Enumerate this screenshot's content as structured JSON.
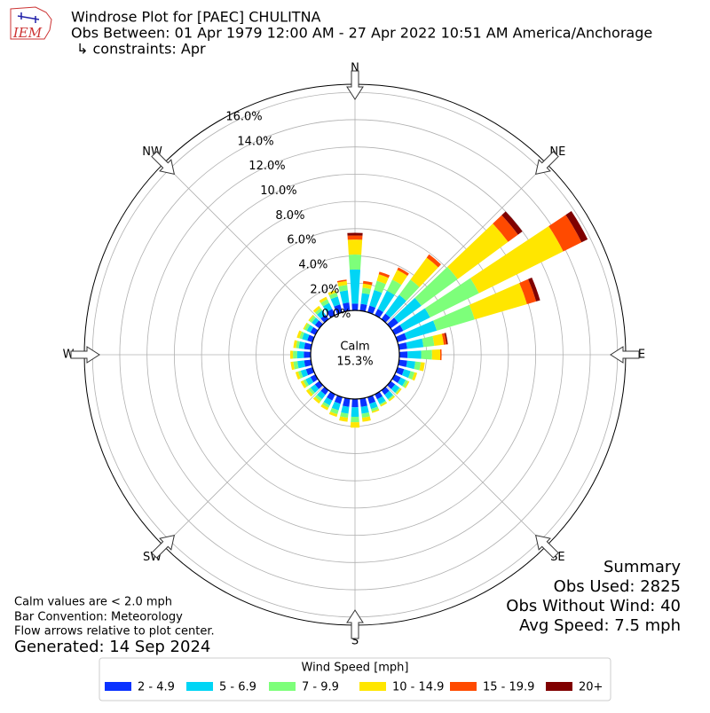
{
  "chart_data": {
    "type": "windrose",
    "title": "Windrose Plot for [PAEC] CHULITNA",
    "subtitle": "Obs Between: 01 Apr 1979 12:00 AM - 27 Apr 2022 10:51 AM America/Anchorage",
    "constraints": "↳ constraints: Apr",
    "logo_text": "IEM",
    "x": [
      0,
      10,
      20,
      30,
      40,
      50,
      60,
      70,
      80,
      90,
      100,
      110,
      120,
      130,
      140,
      150,
      160,
      170,
      180,
      190,
      200,
      210,
      220,
      230,
      240,
      250,
      260,
      270,
      280,
      290,
      300,
      310,
      320,
      330,
      340,
      350
    ],
    "xticks": [
      {
        "value": 0,
        "label": "N"
      },
      {
        "value": 45,
        "label": "NE"
      },
      {
        "value": 90,
        "label": "E"
      },
      {
        "value": 135,
        "label": "SE"
      },
      {
        "value": 180,
        "label": "S"
      },
      {
        "value": 225,
        "label": "SW"
      },
      {
        "value": 270,
        "label": "W"
      },
      {
        "value": 315,
        "label": "NW"
      }
    ],
    "ylim": [
      0,
      16.6
    ],
    "yticks": [
      {
        "value": 0,
        "label": "0.0%"
      },
      {
        "value": 2,
        "label": "2.0%"
      },
      {
        "value": 4,
        "label": "4.0%"
      },
      {
        "value": 6,
        "label": "6.0%"
      },
      {
        "value": 8,
        "label": "8.0%"
      },
      {
        "value": 10,
        "label": "10.0%"
      },
      {
        "value": 12,
        "label": "12.0%"
      },
      {
        "value": 14,
        "label": "14.0%"
      },
      {
        "value": 16,
        "label": "16.0%"
      }
    ],
    "grid": true,
    "calm": {
      "label": "Calm",
      "value": 15.3,
      "value_label": "15.3%"
    },
    "legend_title": "Wind Speed [mph]",
    "series": [
      {
        "name": "2 - 4.9",
        "color": "#0a32ff",
        "values": [
          0.5,
          0.5,
          0.5,
          0.5,
          0.5,
          0.7,
          0.7,
          0.7,
          0.6,
          0.6,
          0.6,
          0.5,
          0.5,
          0.4,
          0.4,
          0.4,
          0.5,
          0.6,
          0.6,
          0.6,
          0.5,
          0.5,
          0.4,
          0.4,
          0.4,
          0.5,
          0.5,
          0.5,
          0.5,
          0.4,
          0.4,
          0.4,
          0.4,
          0.5,
          0.6,
          0.6
        ]
      },
      {
        "name": "5 - 6.9",
        "color": "#00d5f5",
        "values": [
          2.5,
          0.8,
          1.2,
          1.5,
          1.7,
          2.1,
          2.2,
          2.3,
          1.2,
          1.0,
          0.6,
          0.5,
          0.4,
          0.4,
          0.4,
          0.4,
          0.4,
          0.5,
          0.7,
          0.5,
          0.5,
          0.4,
          0.4,
          0.4,
          0.4,
          0.4,
          0.5,
          0.5,
          0.4,
          0.4,
          0.3,
          0.3,
          0.4,
          0.5,
          0.6,
          0.9
        ]
      },
      {
        "name": "7 - 9.9",
        "color": "#7dff7a",
        "values": [
          1.1,
          0.4,
          0.7,
          0.9,
          1.4,
          3.3,
          4.0,
          2.9,
          0.8,
          0.8,
          0.4,
          0.3,
          0.2,
          0.1,
          0.1,
          0.1,
          0.2,
          0.3,
          0.4,
          0.3,
          0.3,
          0.2,
          0.2,
          0.2,
          0.2,
          0.2,
          0.3,
          0.3,
          0.2,
          0.2,
          0.2,
          0.2,
          0.2,
          0.3,
          0.3,
          0.4
        ]
      },
      {
        "name": "10 - 14.9",
        "color": "#ffe600",
        "values": [
          1.1,
          0.3,
          0.5,
          0.8,
          2.0,
          4.6,
          6.9,
          4.0,
          0.7,
          0.6,
          0.3,
          0.2,
          0.1,
          0.1,
          0.1,
          0.1,
          0.1,
          0.3,
          0.4,
          0.3,
          0.2,
          0.2,
          0.2,
          0.2,
          0.2,
          0.2,
          0.2,
          0.2,
          0.2,
          0.2,
          0.1,
          0.1,
          0.2,
          0.2,
          0.2,
          0.3
        ]
      },
      {
        "name": "15 - 19.9",
        "color": "#ff4a00",
        "values": [
          0.3,
          0.2,
          0.2,
          0.2,
          0.3,
          0.9,
          1.5,
          0.7,
          0.2,
          0.1,
          0,
          0,
          0,
          0,
          0,
          0,
          0,
          0,
          0,
          0,
          0,
          0,
          0,
          0,
          0,
          0,
          0,
          0,
          0,
          0,
          0,
          0,
          0,
          0,
          0,
          0.1
        ]
      },
      {
        "name": "20+",
        "color": "#800000",
        "values": [
          0.2,
          0,
          0,
          0,
          0,
          0.4,
          0.5,
          0.3,
          0.1,
          0,
          0,
          0,
          0,
          0,
          0,
          0,
          0,
          0,
          0,
          0,
          0,
          0,
          0,
          0,
          0,
          0,
          0,
          0,
          0,
          0,
          0,
          0,
          0,
          0,
          0,
          0
        ]
      }
    ],
    "notes": [
      "Calm values are < 2.0 mph",
      "Bar Convention: Meteorology",
      "Flow arrows relative to plot center."
    ],
    "generated": "Generated: 14 Sep 2024",
    "summary": [
      "Summary",
      "Obs Used: 2825",
      "Obs Without Wind: 40",
      "Avg Speed: 7.5 mph"
    ]
  }
}
